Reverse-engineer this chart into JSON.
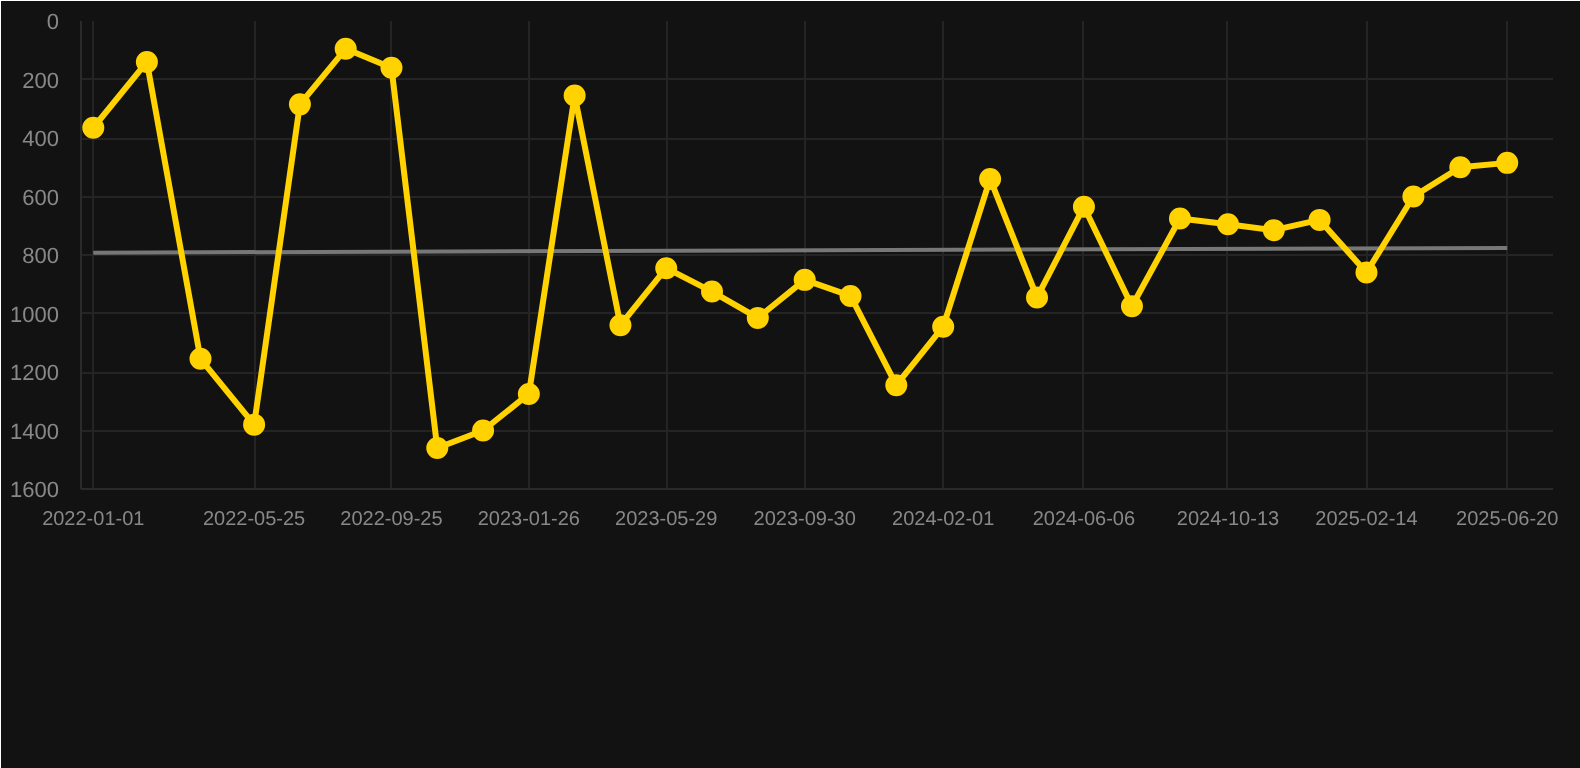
{
  "chart_data": {
    "type": "line",
    "x": [
      "2022-01-01",
      "2022-02-18",
      "2022-04-07",
      "2022-05-25",
      "2022-07-05",
      "2022-08-15",
      "2022-09-25",
      "2022-11-05",
      "2022-12-16",
      "2023-01-26",
      "2023-03-08",
      "2023-04-18",
      "2023-05-29",
      "2023-07-09",
      "2023-08-19",
      "2023-09-30",
      "2023-11-10",
      "2023-12-21",
      "2024-02-01",
      "2024-03-14",
      "2024-04-25",
      "2024-06-06",
      "2024-07-19",
      "2024-08-31",
      "2024-10-13",
      "2024-11-23",
      "2025-01-03",
      "2025-02-14",
      "2025-03-28",
      "2025-05-09",
      "2025-06-20"
    ],
    "series": [
      {
        "color": "#ffd200",
        "marker": "circle",
        "values": [
          365,
          140,
          1155,
          1380,
          285,
          95,
          160,
          1460,
          1400,
          1275,
          255,
          1040,
          845,
          925,
          1015,
          885,
          940,
          1245,
          1045,
          540,
          945,
          635,
          975,
          675,
          695,
          715,
          680,
          860,
          600,
          500,
          485
        ]
      },
      {
        "type": "line",
        "color": "#777777",
        "marker": "none",
        "x": [
          "2022-01-01",
          "2025-06-20"
        ],
        "values": [
          792,
          776
        ]
      }
    ],
    "ylim": [
      1600,
      0
    ],
    "yticks": [
      0,
      200,
      400,
      600,
      800,
      1000,
      1200,
      1400,
      1600
    ],
    "xlim": [
      "2021-12-21",
      "2025-07-31"
    ],
    "xticks": [
      "2022-01-01",
      "2022-05-25",
      "2022-09-25",
      "2023-01-26",
      "2023-05-29",
      "2023-09-30",
      "2024-02-01",
      "2024-06-06",
      "2024-10-13",
      "2025-02-14",
      "2025-06-20"
    ],
    "grid": true
  }
}
